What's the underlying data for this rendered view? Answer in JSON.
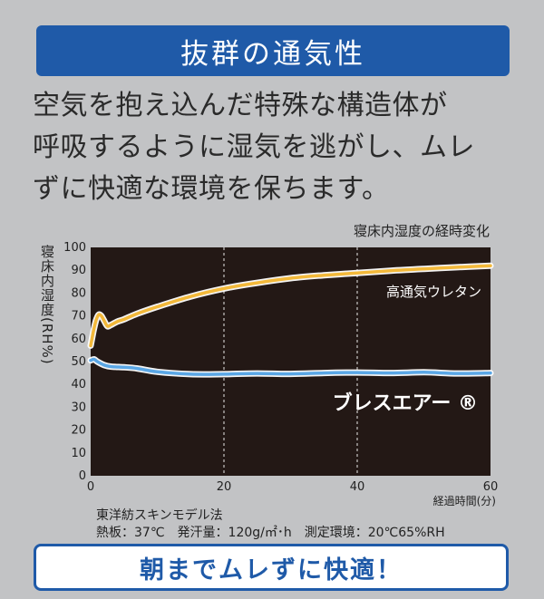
{
  "banner": {
    "title": "抜群の通気性"
  },
  "description": {
    "lines": [
      "空気を抱え込んだ特殊な構造体が",
      "呼吸するように湿気を逃がし、ムレ",
      "ずに快適な環境を保ちます。"
    ]
  },
  "chart_data": {
    "type": "line",
    "title": "寝床内湿度の経時変化",
    "xlabel": "経過時間(分)",
    "ylabel": "寝床内湿度(RH%)",
    "xlim": [
      0,
      60
    ],
    "ylim": [
      0,
      100
    ],
    "x_ticks": [
      0,
      20,
      40,
      60
    ],
    "y_ticks": [
      0,
      10,
      20,
      30,
      40,
      50,
      60,
      70,
      80,
      90,
      100
    ],
    "grid": "vertical-dashed",
    "background": "#231815",
    "series": [
      {
        "name": "高通気ウレタン",
        "color": "#f3b93a",
        "x": [
          0,
          0.4,
          0.8,
          1.2,
          1.6,
          2.0,
          2.5,
          3.0,
          4,
          5,
          7,
          10,
          15,
          20,
          25,
          30,
          35,
          40,
          45,
          50,
          55,
          60
        ],
        "y": [
          57,
          63,
          68,
          70.5,
          70,
          68,
          65.5,
          66,
          67.5,
          68.5,
          71,
          74,
          78.5,
          82,
          84.5,
          86.5,
          87.8,
          88.8,
          89.8,
          90.6,
          91.3,
          92
        ]
      },
      {
        "name": "ブレスエアー ®",
        "color": "#5aa7e6",
        "x": [
          0,
          0.5,
          1,
          2,
          3,
          5,
          7,
          10,
          15,
          20,
          25,
          30,
          35,
          40,
          45,
          50,
          55,
          60
        ],
        "y": [
          50.5,
          51,
          50,
          48.5,
          47.8,
          47.5,
          47,
          45.5,
          44.5,
          44.5,
          44.8,
          44.6,
          45,
          45.2,
          45,
          45.3,
          44.8,
          45
        ]
      }
    ]
  },
  "notes": {
    "line1": "東洋紡スキンモデル法",
    "line2": "熱板：37℃　発汗量：120g/㎡･h　測定環境：20℃65%RH"
  },
  "footer": {
    "text": "朝までムレずに快適！"
  }
}
